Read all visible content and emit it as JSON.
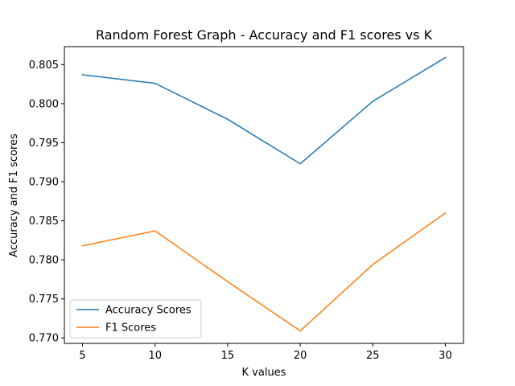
{
  "chart_data": {
    "type": "line",
    "title": "Random Forest Graph - Accuracy and F1 scores vs K",
    "xlabel": "K values",
    "ylabel": "Accuracy and F1 scores",
    "x": [
      5,
      10,
      15,
      20,
      25,
      30
    ],
    "xlim": [
      3.75,
      31.25
    ],
    "ylim": [
      0.7693,
      0.8073
    ],
    "xticks": [
      5,
      10,
      15,
      20,
      25,
      30
    ],
    "yticks": [
      0.77,
      0.775,
      0.78,
      0.785,
      0.79,
      0.795,
      0.8,
      0.805
    ],
    "ytick_labels": [
      "0.770",
      "0.775",
      "0.780",
      "0.785",
      "0.790",
      "0.795",
      "0.800",
      "0.805"
    ],
    "grid": false,
    "legend_position": "lower-left",
    "series": [
      {
        "name": "Accuracy Scores",
        "color": "#1f77b4",
        "values": [
          0.8037,
          0.8026,
          0.798,
          0.7923,
          0.8003,
          0.8059
        ]
      },
      {
        "name": "F1 Scores",
        "color": "#ff7f0e",
        "values": [
          0.7818,
          0.7837,
          0.7772,
          0.7709,
          0.7794,
          0.786
        ]
      }
    ]
  }
}
